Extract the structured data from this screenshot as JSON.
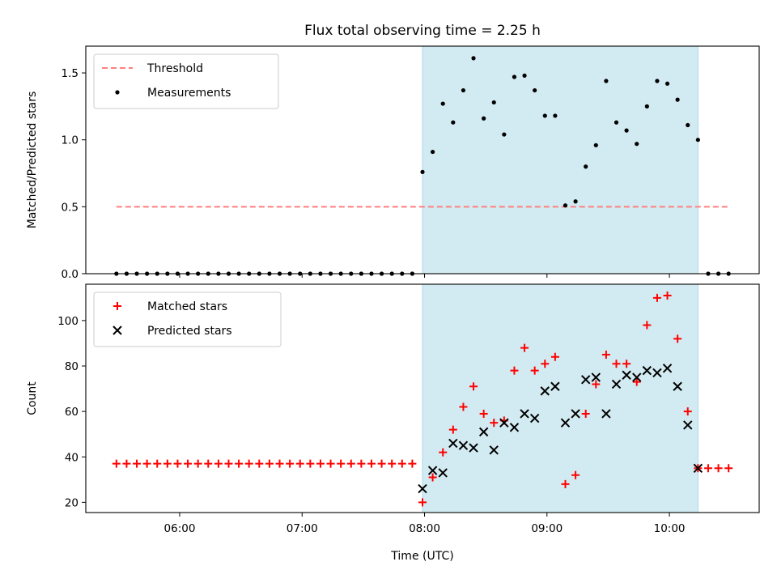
{
  "chart_data": {
    "type": "scatter",
    "title": "Flux total observing time = 2.25 h",
    "xlabel": "Time (UTC)",
    "x_ticks": [
      "06:00",
      "07:00",
      "08:00",
      "09:00",
      "10:00"
    ],
    "x_tick_minutes": [
      360,
      420,
      480,
      540,
      600
    ],
    "xlim_minutes": [
      314,
      644
    ],
    "observing_window_minutes": [
      479,
      614
    ],
    "colors": {
      "window": "#add8e6",
      "threshold": "#ff7f7f",
      "measurements": "#000000",
      "matched": "#ff0000",
      "predicted": "#000000"
    },
    "panels": [
      {
        "ylabel": "Matched/Predicted stars",
        "ylim": [
          0,
          1.7
        ],
        "y_ticks": [
          "0.0",
          "0.5",
          "1.0",
          "1.5"
        ],
        "y_tick_values": [
          0,
          0.5,
          1.0,
          1.5
        ],
        "legend": [
          "Threshold",
          "Measurements"
        ],
        "legend_position": "upper left",
        "threshold": {
          "name": "Threshold",
          "value": 0.5,
          "x_start": 329,
          "x_end": 629
        },
        "series": [
          {
            "name": "Measurements",
            "marker": "dot",
            "x": [
              329,
              334,
              339,
              344,
              349,
              354,
              359,
              364,
              369,
              374,
              379,
              384,
              389,
              394,
              399,
              404,
              409,
              414,
              419,
              424,
              429,
              434,
              439,
              444,
              449,
              454,
              459,
              464,
              469,
              474,
              479,
              484,
              489,
              494,
              499,
              504,
              509,
              514,
              519,
              524,
              529,
              534,
              539,
              544,
              549,
              554,
              559,
              564,
              569,
              574,
              579,
              584,
              589,
              594,
              599,
              604,
              609,
              614,
              619,
              624,
              629
            ],
            "y": [
              0,
              0,
              0,
              0,
              0,
              0,
              0,
              0,
              0,
              0,
              0,
              0,
              0,
              0,
              0,
              0,
              0,
              0,
              0,
              0,
              0,
              0,
              0,
              0,
              0,
              0,
              0,
              0,
              0,
              0,
              0.76,
              0.91,
              1.27,
              1.13,
              1.37,
              1.61,
              1.16,
              1.28,
              1.04,
              1.47,
              1.48,
              1.37,
              1.18,
              1.18,
              0.51,
              0.54,
              0.8,
              0.96,
              1.44,
              1.13,
              1.07,
              0.97,
              1.25,
              1.44,
              1.42,
              1.3,
              1.11,
              1.0,
              0,
              0,
              0
            ]
          }
        ]
      },
      {
        "ylabel": "Count",
        "ylim": [
          15.5,
          116
        ],
        "y_ticks": [
          "20",
          "40",
          "60",
          "80",
          "100"
        ],
        "y_tick_values": [
          20,
          40,
          60,
          80,
          100
        ],
        "legend": [
          "Matched stars",
          "Predicted stars"
        ],
        "legend_position": "upper left",
        "series": [
          {
            "name": "Matched stars",
            "marker": "plus",
            "x": [
              329,
              334,
              339,
              344,
              349,
              354,
              359,
              364,
              369,
              374,
              379,
              384,
              389,
              394,
              399,
              404,
              409,
              414,
              419,
              424,
              429,
              434,
              439,
              444,
              449,
              454,
              459,
              464,
              469,
              474,
              479,
              484,
              489,
              494,
              499,
              504,
              509,
              514,
              519,
              524,
              529,
              534,
              539,
              544,
              549,
              554,
              559,
              564,
              569,
              574,
              579,
              584,
              589,
              594,
              599,
              604,
              609,
              614,
              619,
              624,
              629
            ],
            "y": [
              37,
              37,
              37,
              37,
              37,
              37,
              37,
              37,
              37,
              37,
              37,
              37,
              37,
              37,
              37,
              37,
              37,
              37,
              37,
              37,
              37,
              37,
              37,
              37,
              37,
              37,
              37,
              37,
              37,
              37,
              20,
              31,
              42,
              52,
              62,
              71,
              59,
              55,
              56,
              78,
              88,
              78,
              81,
              84,
              28,
              32,
              59,
              72,
              85,
              81,
              81,
              73,
              98,
              110,
              111,
              92,
              60,
              35,
              35,
              35,
              35
            ]
          },
          {
            "name": "Predicted stars",
            "marker": "x",
            "x": [
              479,
              484,
              489,
              494,
              499,
              504,
              509,
              514,
              519,
              524,
              529,
              534,
              539,
              544,
              549,
              554,
              559,
              564,
              569,
              574,
              579,
              584,
              589,
              594,
              599,
              604,
              609,
              614
            ],
            "y": [
              26,
              34,
              33,
              46,
              45,
              44,
              51,
              43,
              55,
              53,
              59,
              57,
              69,
              71,
              55,
              59,
              74,
              75,
              59,
              72,
              76,
              75,
              78,
              77,
              79,
              71,
              54,
              35
            ]
          }
        ]
      }
    ]
  }
}
